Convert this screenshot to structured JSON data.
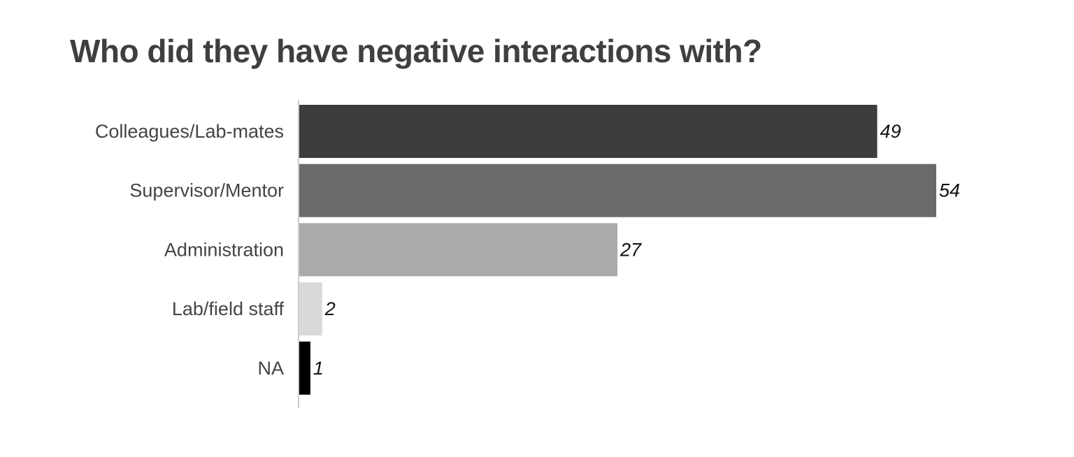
{
  "chart_data": {
    "type": "bar",
    "orientation": "horizontal",
    "title": "Who did they have negative interactions with?",
    "categories": [
      "Colleagues/Lab-mates",
      "Supervisor/Mentor",
      "Administration",
      "Lab/field staff",
      "NA"
    ],
    "values": [
      49,
      54,
      27,
      2,
      1
    ],
    "colors": [
      "#3d3d3d",
      "#6a6a6a",
      "#aaaaaa",
      "#d9d9d9",
      "#000000"
    ],
    "xlim": [
      0,
      54
    ],
    "grid": false,
    "legend": "none",
    "data_labels": true
  }
}
